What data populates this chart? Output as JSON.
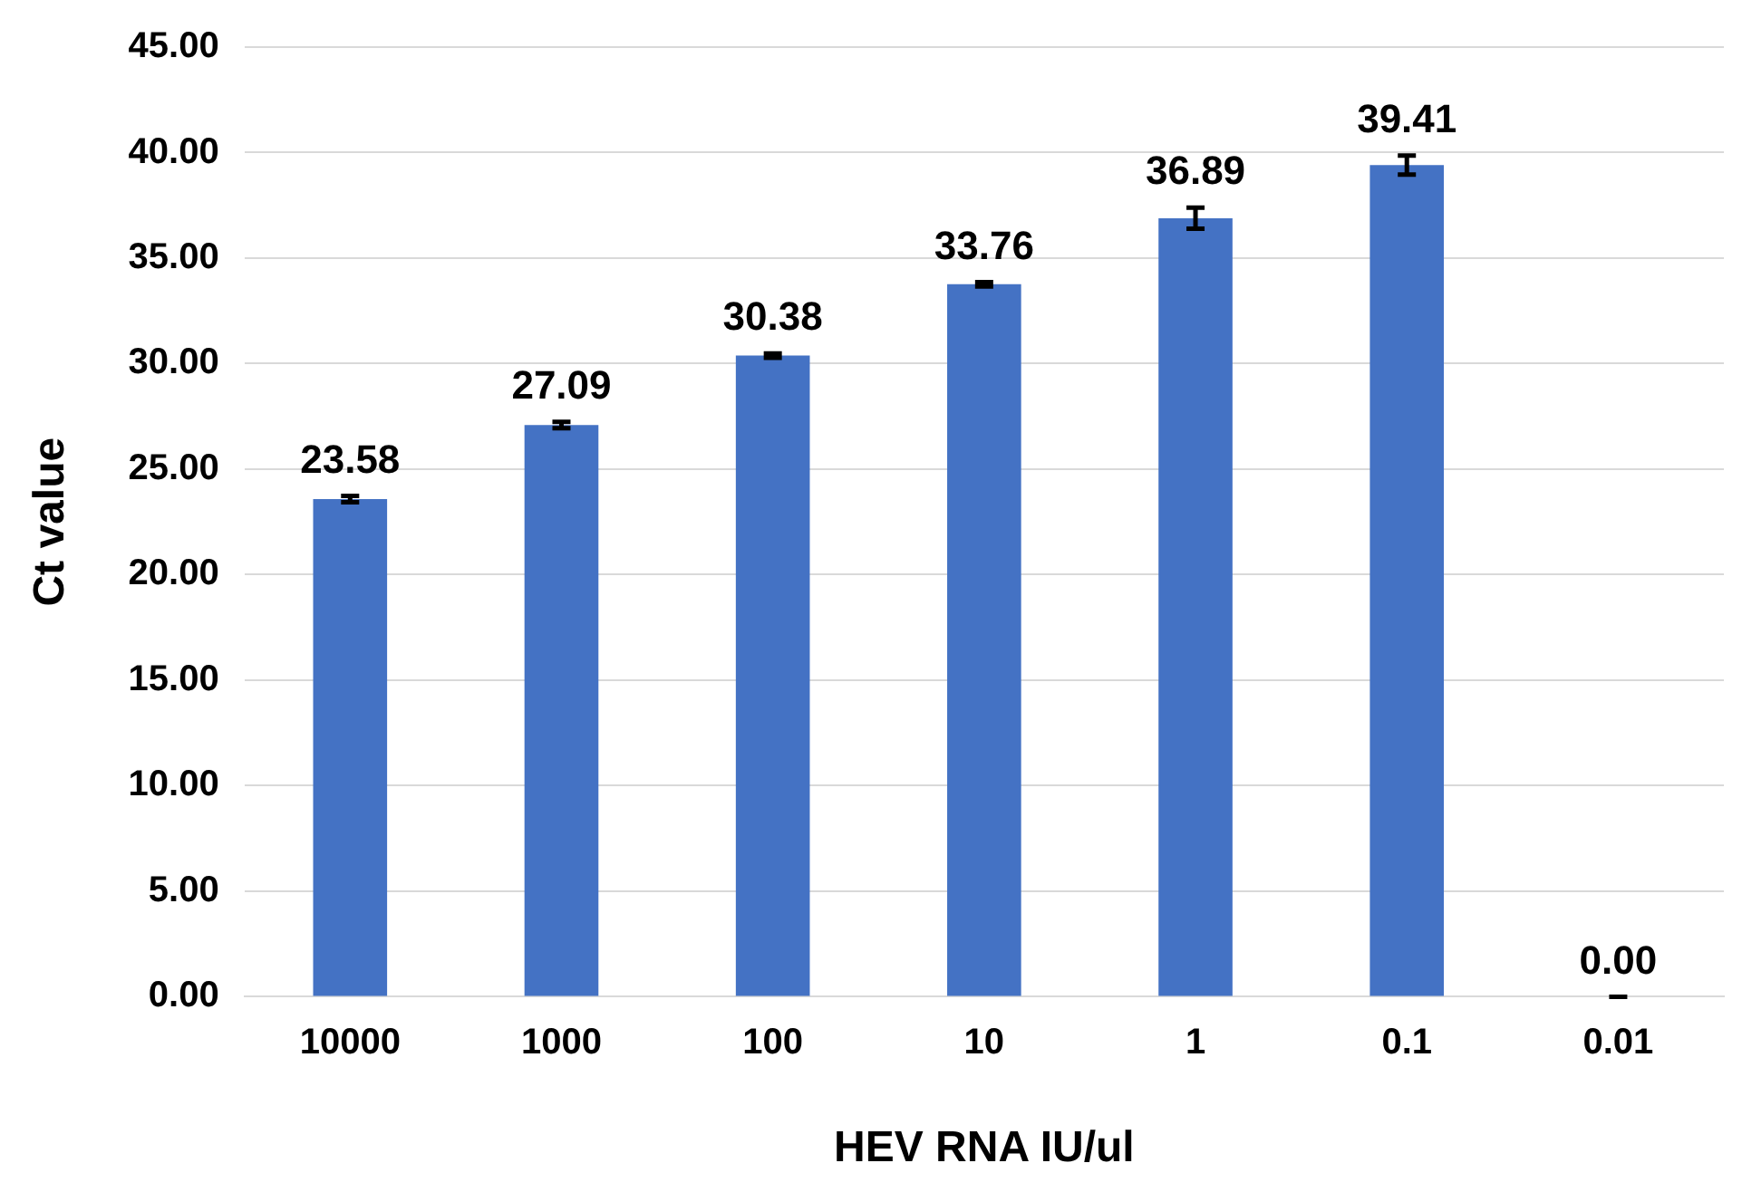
{
  "chart_data": {
    "type": "bar",
    "xlabel": "HEV RNA IU/ul",
    "ylabel": "Ct value",
    "categories": [
      "10000",
      "1000",
      "100",
      "10",
      "1",
      "0.1",
      "0.01"
    ],
    "values": [
      23.58,
      27.09,
      30.38,
      33.76,
      36.89,
      39.41,
      0
    ],
    "errors": [
      0.15,
      0.15,
      0.1,
      0.1,
      0.5,
      0.45,
      0
    ],
    "value_labels": [
      "23.58",
      "27.09",
      "30.38",
      "33.76",
      "36.89",
      "39.41",
      "0.00"
    ],
    "color": "#4472c4",
    "ylim": [
      0,
      45
    ],
    "yticks": [
      {
        "value": 0,
        "label": "0.00"
      },
      {
        "value": 5,
        "label": "5.00"
      },
      {
        "value": 10,
        "label": "10.00"
      },
      {
        "value": 15,
        "label": "15.00"
      },
      {
        "value": 20,
        "label": "20.00"
      },
      {
        "value": 25,
        "label": "25.00"
      },
      {
        "value": 30,
        "label": "30.00"
      },
      {
        "value": 35,
        "label": "35.00"
      },
      {
        "value": 40,
        "label": "40.00"
      },
      {
        "value": 45,
        "label": "45.00"
      }
    ],
    "grid": "y",
    "legend": false
  }
}
